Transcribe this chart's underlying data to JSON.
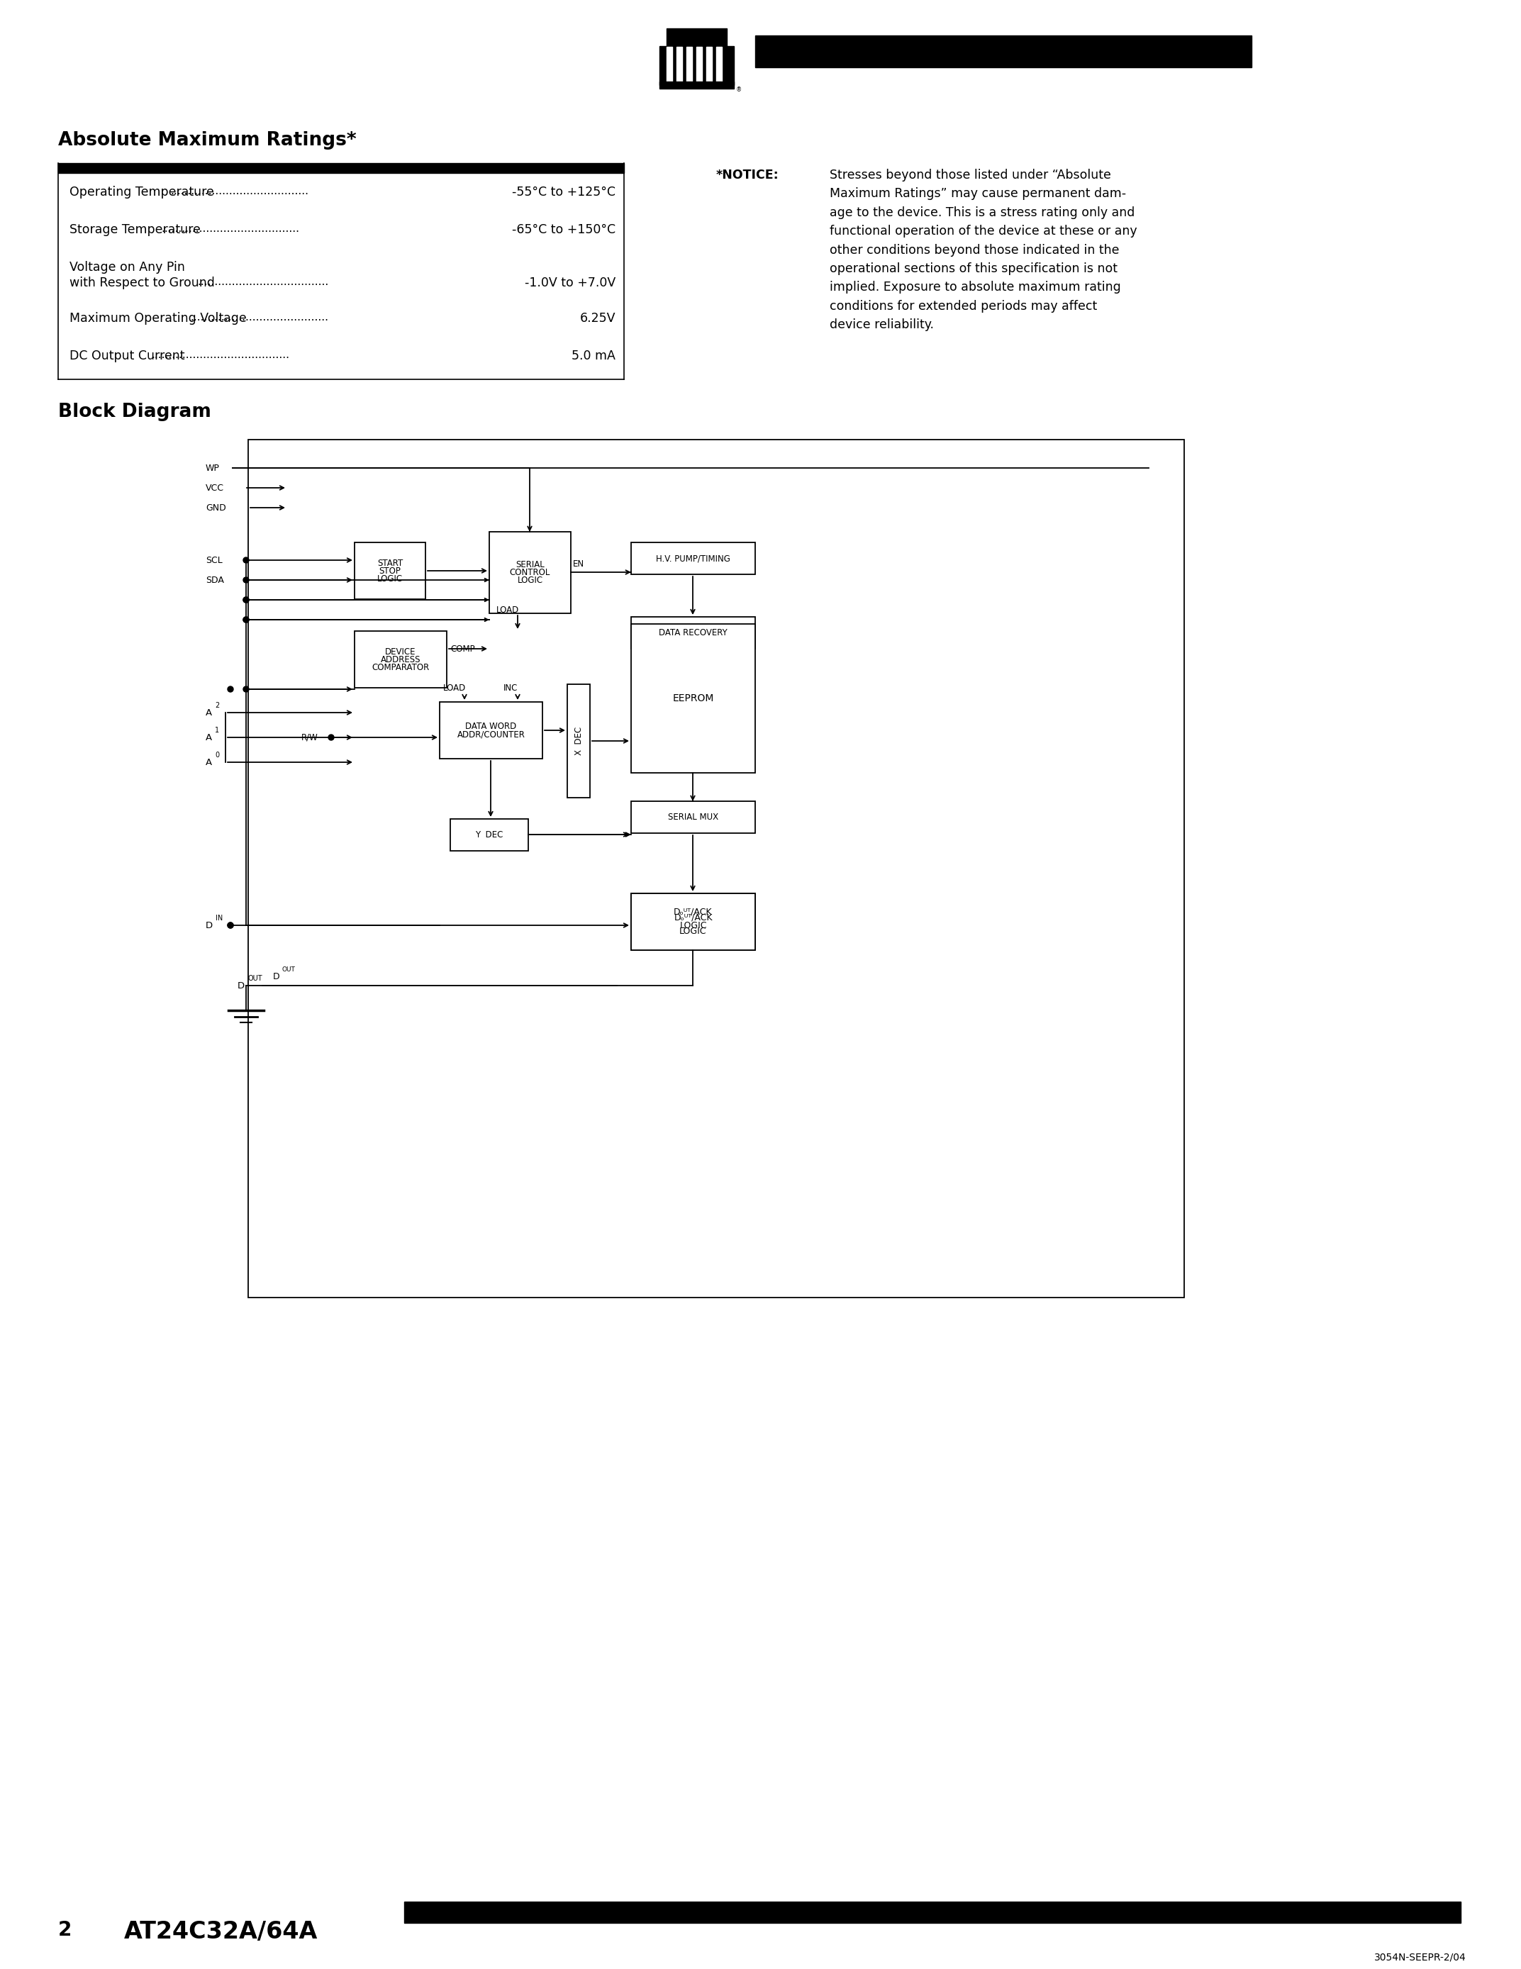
{
  "page_bg": "#ffffff",
  "title_abs": "Absolute Maximum Ratings*",
  "notice_title": "*NOTICE:",
  "notice_body": "Stresses beyond those listed under “Absolute\nMaximum Ratings” may cause permanent dam-\nage to the device. This is a stress rating only and\nfunctional operation of the device at these or any\nother conditions beyond those indicated in the\noperational sections of this specification is not\nimplied. Exposure to absolute maximum rating\nconditions for extended periods may affect\ndevice reliability.",
  "title_block": "Block Diagram",
  "footer_left_num": "2",
  "footer_left_text": "AT24C32A/64A",
  "footer_right": "3054N-SEEPR-2/04",
  "ratings": [
    {
      "label": "Operating Temperature",
      "value": "-55°C to +125°C",
      "two_line": false
    },
    {
      "label": "Storage Temperature",
      "value": "-65°C to +150°C",
      "two_line": false
    },
    {
      "label": "Voltage on Any Pin",
      "label2": "with Respect to Ground",
      "value": "-1.0V to +7.0V",
      "two_line": true
    },
    {
      "label": "Maximum Operating Voltage",
      "value": "6.25V",
      "two_line": false
    },
    {
      "label": "DC Output Current",
      "value": "5.0 mA",
      "two_line": false
    }
  ]
}
